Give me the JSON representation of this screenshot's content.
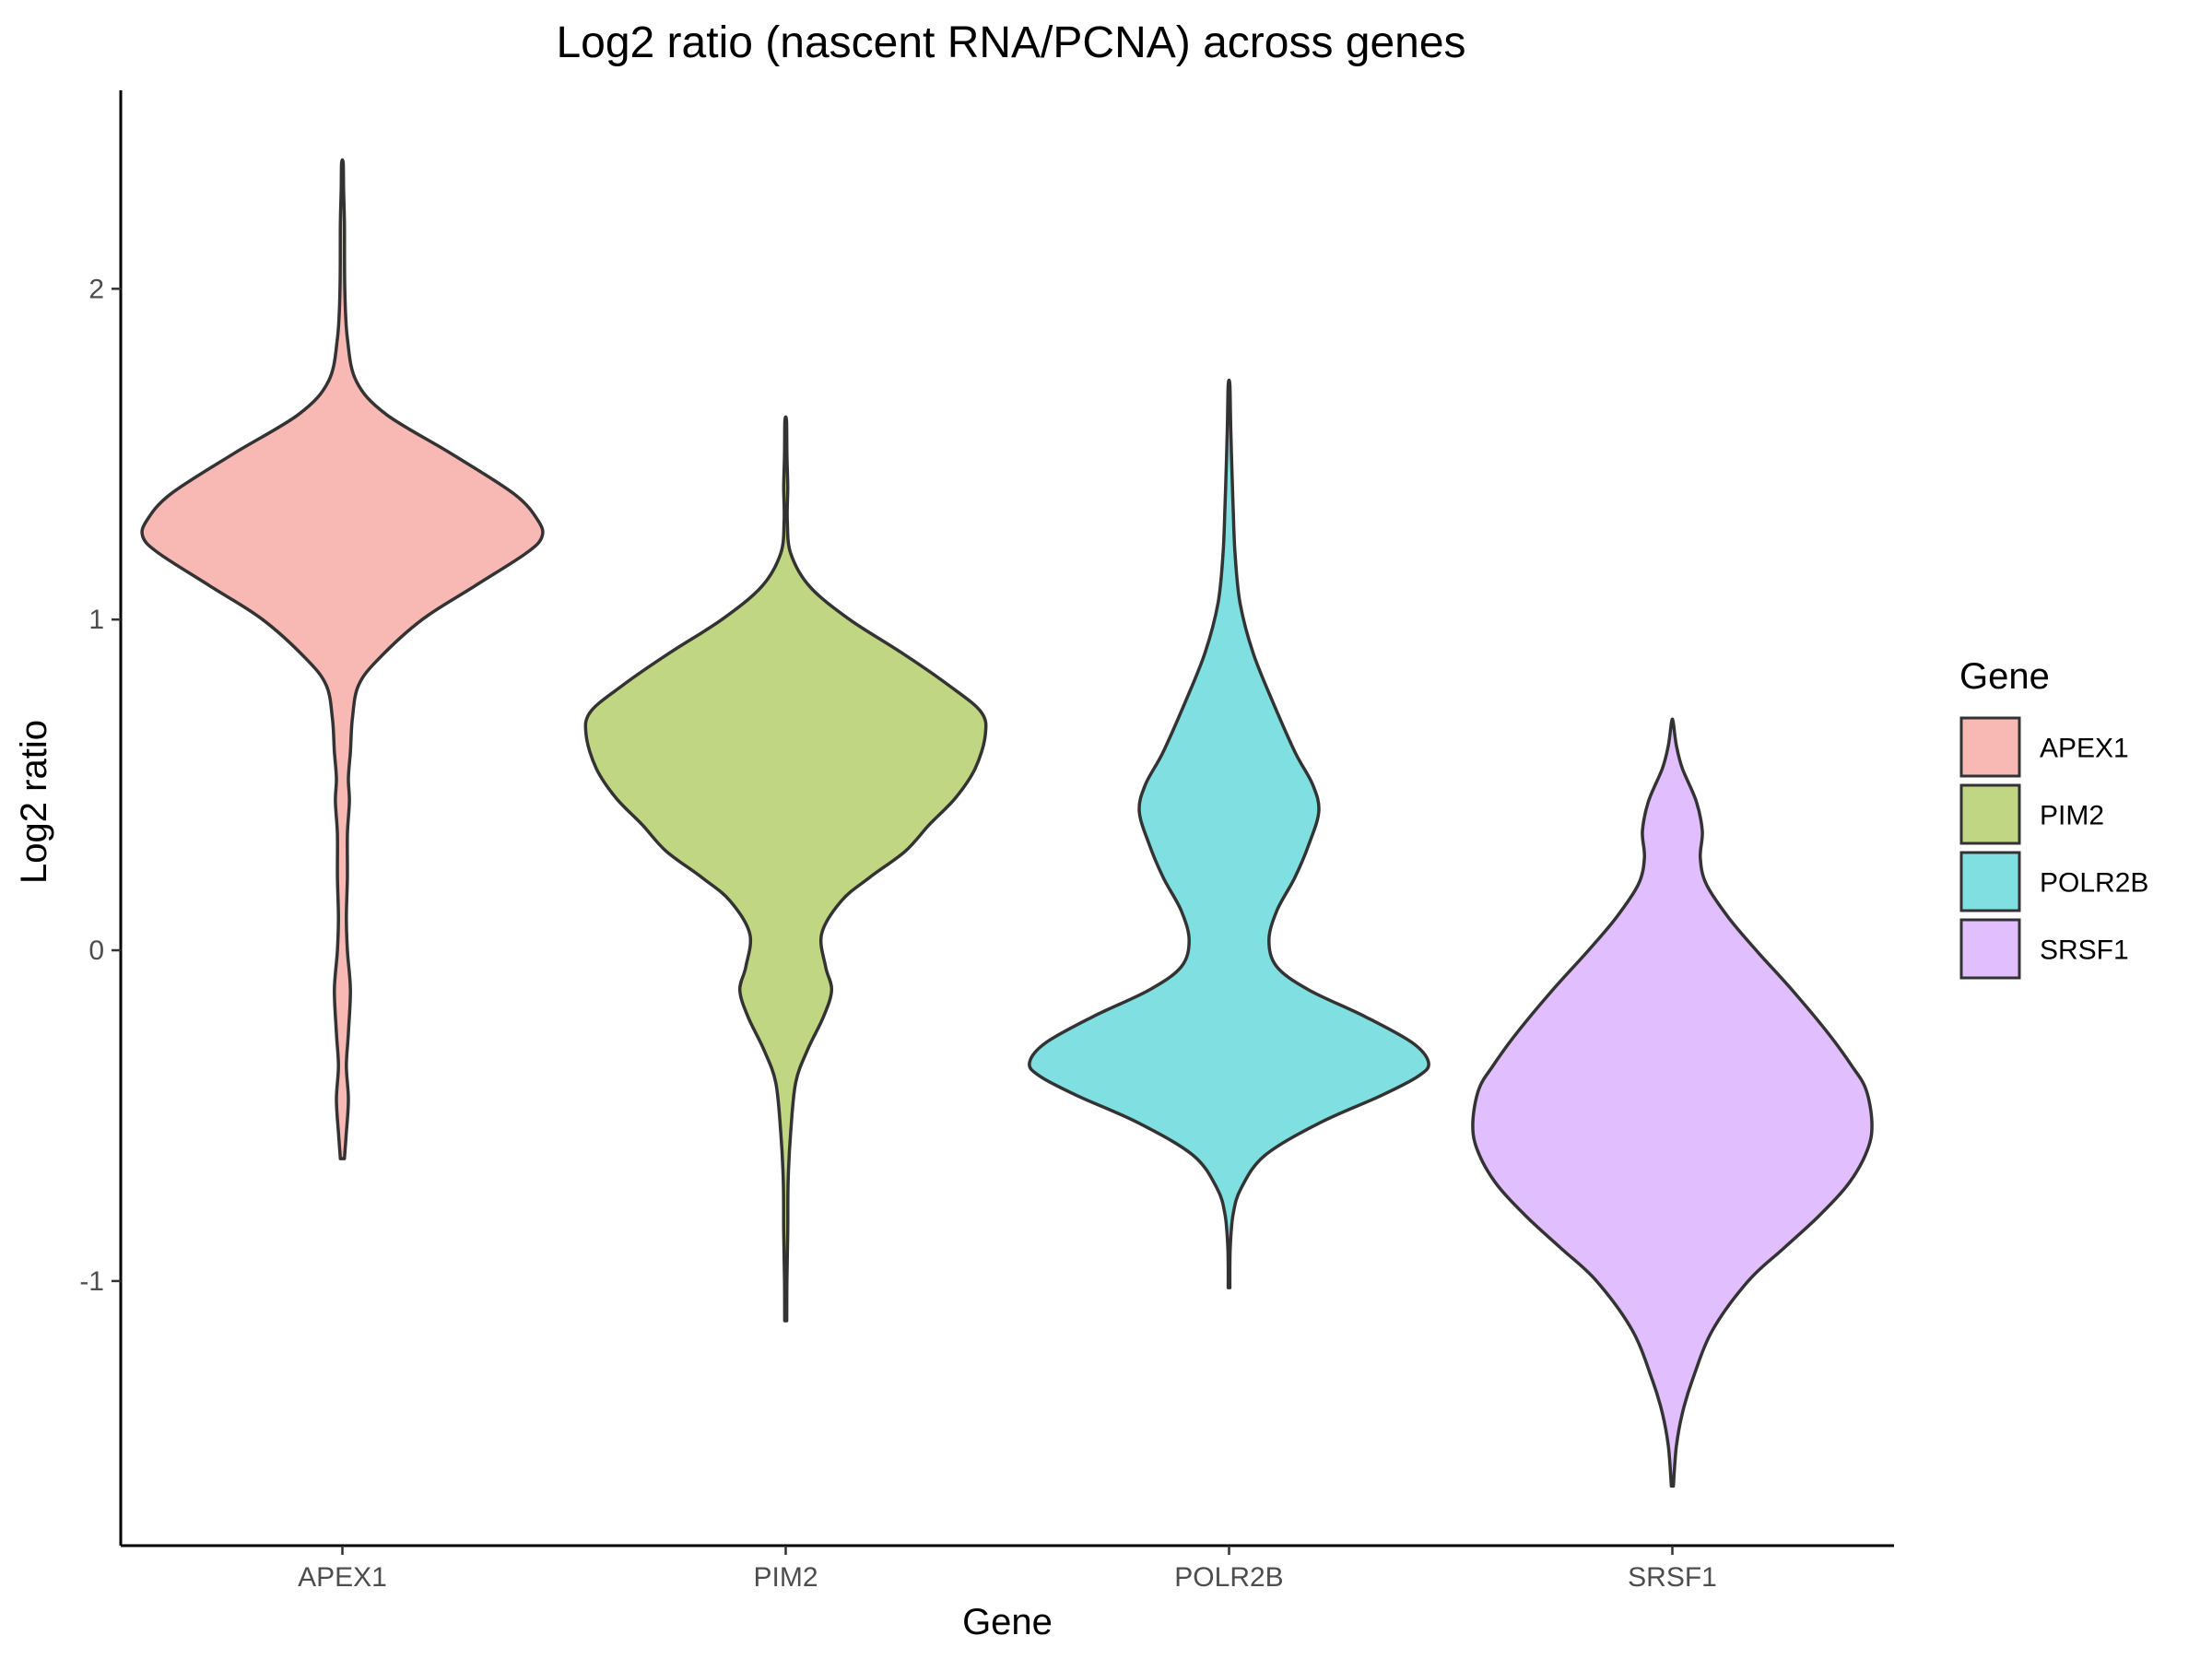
{
  "chart_data": {
    "type": "violin",
    "title": "Log2 ratio (nascent RNA/PCNA) across genes",
    "xlabel": "Gene",
    "ylabel": "Log2 ratio",
    "ylim": [
      -1.8,
      2.6
    ],
    "yticks": [
      -1,
      0,
      1,
      2
    ],
    "ytick_labels": [
      "-1",
      "0",
      "1",
      "2"
    ],
    "categories": [
      "APEX1",
      "PIM2",
      "POLR2B",
      "SRSF1"
    ],
    "grid": false,
    "legend": {
      "title": "Gene",
      "placement": "right",
      "entries": [
        "APEX1",
        "PIM2",
        "POLR2B",
        "SRSF1"
      ]
    },
    "colors": {
      "APEX1": "#f8b9b5",
      "PIM2": "#c0d682",
      "POLR2B": "#80dfe0",
      "SRSF1": "#e1befd"
    },
    "series": [
      {
        "name": "APEX1",
        "density_profile": [
          [
            -0.63,
            0.01
          ],
          [
            -0.55,
            0.02
          ],
          [
            -0.45,
            0.03
          ],
          [
            -0.35,
            0.02
          ],
          [
            -0.25,
            0.03
          ],
          [
            -0.12,
            0.04
          ],
          [
            0.0,
            0.025
          ],
          [
            0.1,
            0.02
          ],
          [
            0.22,
            0.025
          ],
          [
            0.35,
            0.025
          ],
          [
            0.45,
            0.035
          ],
          [
            0.52,
            0.03
          ],
          [
            0.6,
            0.04
          ],
          [
            0.7,
            0.05
          ],
          [
            0.8,
            0.08
          ],
          [
            0.88,
            0.18
          ],
          [
            1.0,
            0.4
          ],
          [
            1.1,
            0.66
          ],
          [
            1.2,
            0.92
          ],
          [
            1.25,
            1.0
          ],
          [
            1.3,
            0.98
          ],
          [
            1.38,
            0.86
          ],
          [
            1.5,
            0.55
          ],
          [
            1.62,
            0.22
          ],
          [
            1.72,
            0.07
          ],
          [
            1.85,
            0.025
          ],
          [
            2.0,
            0.012
          ],
          [
            2.2,
            0.01
          ],
          [
            2.3,
            0.006
          ],
          [
            2.38,
            0.004
          ]
        ]
      },
      {
        "name": "PIM2",
        "density_profile": [
          [
            -1.12,
            0.005
          ],
          [
            -1.0,
            0.006
          ],
          [
            -0.85,
            0.01
          ],
          [
            -0.7,
            0.012
          ],
          [
            -0.55,
            0.025
          ],
          [
            -0.4,
            0.05
          ],
          [
            -0.3,
            0.11
          ],
          [
            -0.2,
            0.19
          ],
          [
            -0.12,
            0.23
          ],
          [
            -0.05,
            0.2
          ],
          [
            0.05,
            0.18
          ],
          [
            0.15,
            0.28
          ],
          [
            0.22,
            0.42
          ],
          [
            0.3,
            0.6
          ],
          [
            0.38,
            0.72
          ],
          [
            0.46,
            0.85
          ],
          [
            0.55,
            0.95
          ],
          [
            0.65,
            1.0
          ],
          [
            0.72,
            0.98
          ],
          [
            0.8,
            0.82
          ],
          [
            0.9,
            0.58
          ],
          [
            1.0,
            0.32
          ],
          [
            1.1,
            0.12
          ],
          [
            1.2,
            0.025
          ],
          [
            1.3,
            0.008
          ],
          [
            1.4,
            0.01
          ],
          [
            1.5,
            0.006
          ],
          [
            1.6,
            0.004
          ]
        ]
      },
      {
        "name": "POLR2B",
        "density_profile": [
          [
            -1.02,
            0.004
          ],
          [
            -0.9,
            0.006
          ],
          [
            -0.8,
            0.02
          ],
          [
            -0.72,
            0.06
          ],
          [
            -0.62,
            0.18
          ],
          [
            -0.52,
            0.46
          ],
          [
            -0.44,
            0.76
          ],
          [
            -0.38,
            0.95
          ],
          [
            -0.34,
            1.0
          ],
          [
            -0.28,
            0.92
          ],
          [
            -0.2,
            0.68
          ],
          [
            -0.12,
            0.4
          ],
          [
            -0.05,
            0.24
          ],
          [
            0.03,
            0.2
          ],
          [
            0.12,
            0.24
          ],
          [
            0.22,
            0.33
          ],
          [
            0.32,
            0.4
          ],
          [
            0.42,
            0.45
          ],
          [
            0.5,
            0.42
          ],
          [
            0.6,
            0.33
          ],
          [
            0.75,
            0.22
          ],
          [
            0.9,
            0.12
          ],
          [
            1.05,
            0.055
          ],
          [
            1.2,
            0.03
          ],
          [
            1.35,
            0.02
          ],
          [
            1.5,
            0.012
          ],
          [
            1.6,
            0.008
          ],
          [
            1.71,
            0.004
          ]
        ]
      },
      {
        "name": "SRSF1",
        "density_profile": [
          [
            -1.62,
            0.005
          ],
          [
            -1.5,
            0.02
          ],
          [
            -1.4,
            0.05
          ],
          [
            -1.3,
            0.1
          ],
          [
            -1.15,
            0.2
          ],
          [
            -1.0,
            0.38
          ],
          [
            -0.9,
            0.56
          ],
          [
            -0.8,
            0.74
          ],
          [
            -0.7,
            0.89
          ],
          [
            -0.6,
            0.98
          ],
          [
            -0.52,
            1.0
          ],
          [
            -0.42,
            0.97
          ],
          [
            -0.35,
            0.9
          ],
          [
            -0.25,
            0.78
          ],
          [
            -0.12,
            0.6
          ],
          [
            0.0,
            0.42
          ],
          [
            0.1,
            0.28
          ],
          [
            0.2,
            0.17
          ],
          [
            0.28,
            0.14
          ],
          [
            0.36,
            0.15
          ],
          [
            0.45,
            0.12
          ],
          [
            0.55,
            0.05
          ],
          [
            0.62,
            0.02
          ],
          [
            0.69,
            0.004
          ]
        ]
      }
    ]
  }
}
